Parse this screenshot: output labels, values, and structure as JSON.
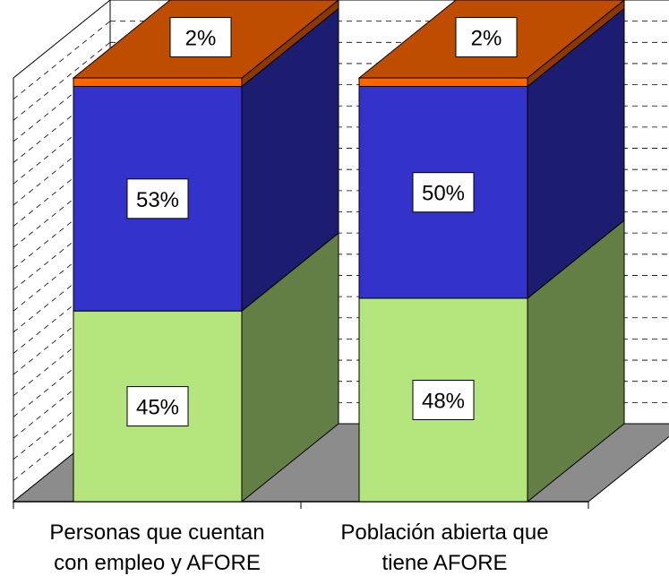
{
  "chart_data": {
    "type": "bar",
    "stacked": true,
    "three_d": true,
    "categories": [
      [
        "Personas que cuentan",
        "con empleo y AFORE"
      ],
      [
        "Población abierta que",
        "tiene AFORE"
      ]
    ],
    "series": [
      {
        "values": [
          45,
          48
        ],
        "labels": [
          "45%",
          "48%"
        ],
        "color": "#b4e67d"
      },
      {
        "values": [
          53,
          50
        ],
        "labels": [
          "53%",
          "50%"
        ],
        "color": "#3333cc"
      },
      {
        "values": [
          2,
          2
        ],
        "labels": [
          "2%",
          "2%"
        ],
        "color": "#ff6600"
      }
    ],
    "ylim": [
      0,
      100
    ],
    "grid": true,
    "legend": "none",
    "colors": {
      "back_wall": "#ffffff",
      "floor": "#8c8c8c",
      "grid_line": "#000000"
    }
  }
}
